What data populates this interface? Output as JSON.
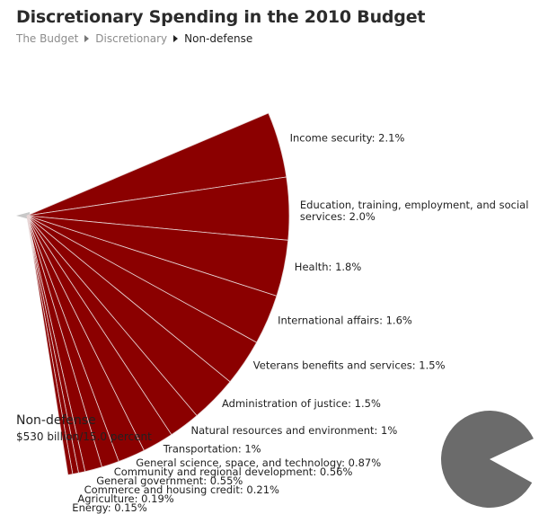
{
  "title": "Discretionary Spending in the 2010 Budget",
  "breadcrumb": {
    "items": [
      "The Budget",
      "Discretionary",
      "Non-defense"
    ]
  },
  "colors": {
    "wedge": "#8b0000",
    "wedge_stroke": "#e8d6d6",
    "tail": "#c8c8c8",
    "pie": "#6b6b6b"
  },
  "chart_data": [
    {
      "type": "pie",
      "subtype": "exploded fan of slices",
      "title": "",
      "unit": "percent",
      "categories": [
        "Income security",
        "Education, training, employment, and social services",
        "Health",
        "International affairs",
        "Veterans benefits and services",
        "Administration of justice",
        "Natural resources and environment",
        "Transportation",
        "General science, space, and technology",
        "Community and regional development",
        "General government",
        "Commerce and housing credit",
        "Agriculture",
        "Energy"
      ],
      "values": [
        2.1,
        2.0,
        1.8,
        1.6,
        1.5,
        1.5,
        1.0,
        1.0,
        0.87,
        0.56,
        0.55,
        0.21,
        0.19,
        0.15
      ],
      "labels": [
        [
          "Income security: 2.1%"
        ],
        [
          "Education, training, employment, and social",
          "services: 2.0%"
        ],
        [
          "Health: 1.8%"
        ],
        [
          "International affairs: 1.6%"
        ],
        [
          "Veterans benefits and services: 1.5%"
        ],
        [
          "Administration of justice: 1.5%"
        ],
        [
          "Natural resources and environment: 1%"
        ],
        [
          "Transportation: 1%"
        ],
        [
          "General science, space, and technology: 0.87%"
        ],
        [
          "Community and regional development: 0.56%"
        ],
        [
          "General government: 0.55%"
        ],
        [
          "Commerce and housing credit: 0.21%"
        ],
        [
          "Agriculture: 0.19%"
        ],
        [
          "Energy: 0.15%"
        ]
      ]
    },
    {
      "type": "pie",
      "subtype": "share indicator",
      "title": "",
      "categories": [
        "Non-defense",
        "Other"
      ],
      "values": [
        15.0,
        85.0
      ]
    }
  ],
  "summary": {
    "label": "Non-defense",
    "value": "$530 billion/15.0 percent"
  }
}
